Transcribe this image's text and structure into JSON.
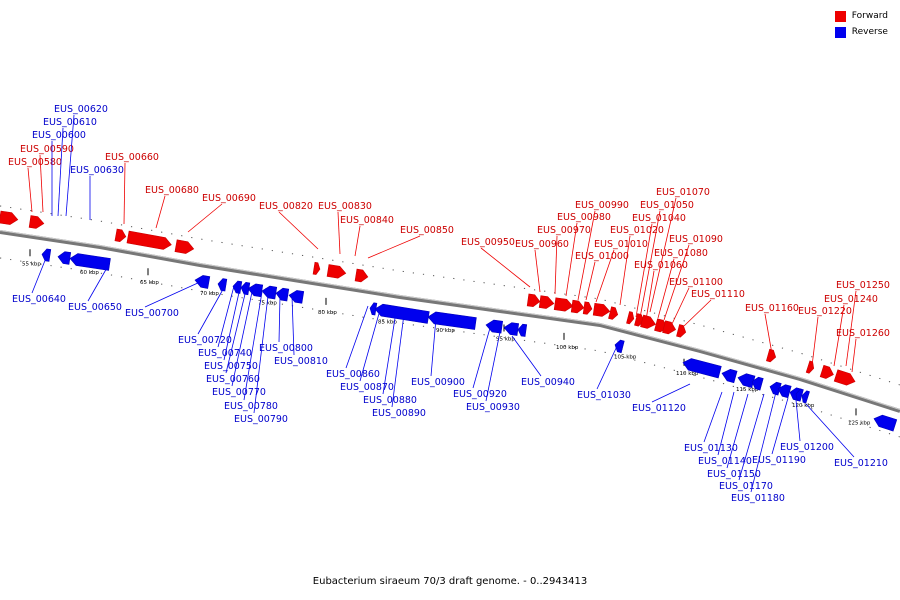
{
  "caption": "Eubacterium siraeum 70/3 draft genome. - 0..2943413",
  "legend": [
    {
      "label": "Forward",
      "color": "#ee0000"
    },
    {
      "label": "Reverse",
      "color": "#0000ee"
    }
  ],
  "colors": {
    "forward": "#ee0000",
    "reverse": "#0000ee",
    "backbone": "#888888"
  },
  "ticks": [
    "55 kbp",
    "60 kbp",
    "65 kbp",
    "70 kbp",
    "75 kbp",
    "80 kbp",
    "85 kbp",
    "90 kbp",
    "95 kbp",
    "100 kbp",
    "105 kbp",
    "110 kbp",
    "115 kbp",
    "120 kbp",
    "125 kbp"
  ],
  "genes_forward": [
    "EUS_00580",
    "EUS_00590",
    "EUS_00660",
    "EUS_00680",
    "EUS_00690",
    "EUS_00820",
    "EUS_00830",
    "EUS_00840",
    "EUS_00850",
    "EUS_00950",
    "EUS_00960",
    "EUS_00970",
    "EUS_00980",
    "EUS_00990",
    "EUS_01000",
    "EUS_01010",
    "EUS_01020",
    "EUS_01040",
    "EUS_01050",
    "EUS_01060",
    "EUS_01070",
    "EUS_01080",
    "EUS_01090",
    "EUS_01100",
    "EUS_01110",
    "EUS_01160",
    "EUS_01220",
    "EUS_01240",
    "EUS_01250",
    "EUS_01260"
  ],
  "genes_reverse": [
    "EUS_00600",
    "EUS_00610",
    "EUS_00620",
    "EUS_00630",
    "EUS_00640",
    "EUS_00650",
    "EUS_00700",
    "EUS_00720",
    "EUS_00740",
    "EUS_00750",
    "EUS_00760",
    "EUS_00770",
    "EUS_00780",
    "EUS_00790",
    "EUS_00800",
    "EUS_00810",
    "EUS_00860",
    "EUS_00870",
    "EUS_00880",
    "EUS_00890",
    "EUS_00900",
    "EUS_00920",
    "EUS_00930",
    "EUS_00940",
    "EUS_01030",
    "EUS_01120",
    "EUS_01130",
    "EUS_01140",
    "EUS_01150",
    "EUS_01170",
    "EUS_01180",
    "EUS_01190",
    "EUS_01200",
    "EUS_01210"
  ]
}
